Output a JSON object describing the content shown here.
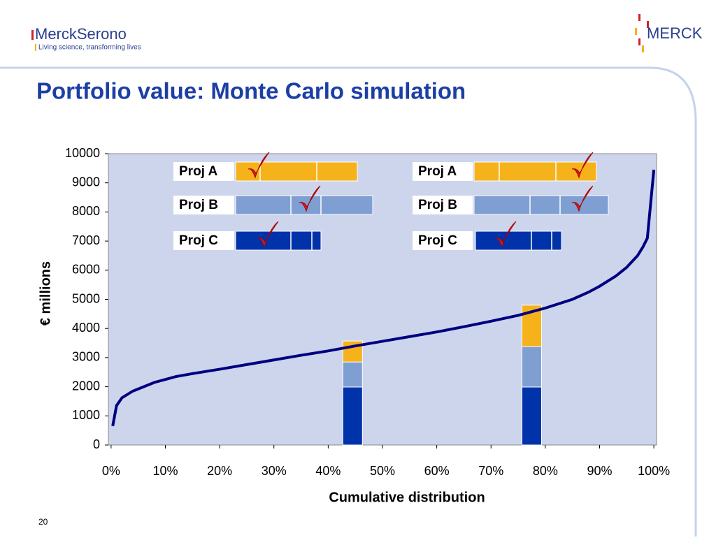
{
  "header": {
    "brand": "MerckSerono",
    "tagline": "Living science, transforming lives",
    "logo": "MERCK"
  },
  "footer": {
    "page": "20"
  },
  "chart_data": {
    "type": "line",
    "title": "Portfolio value: Monte Carlo simulation",
    "x_label": "Cumulative distribution",
    "y_label": "€ millions",
    "xlim": [
      -0.5,
      100.5
    ],
    "xticks": [
      {
        "value": 0,
        "label": "0%"
      },
      {
        "value": 10,
        "label": "10%"
      },
      {
        "value": 20,
        "label": "20%"
      },
      {
        "value": 30,
        "label": "30%"
      },
      {
        "value": 40,
        "label": "40%"
      },
      {
        "value": 50,
        "label": "50%"
      },
      {
        "value": 60,
        "label": "60%"
      },
      {
        "value": 70,
        "label": "70%"
      },
      {
        "value": 80,
        "label": "80%"
      },
      {
        "value": 90,
        "label": "90%"
      },
      {
        "value": 100,
        "label": "100%"
      }
    ],
    "ylim": [
      0,
      10000
    ],
    "yticks": [
      0,
      1000,
      2000,
      3000,
      4000,
      5000,
      6000,
      7000,
      8000,
      9000,
      10000
    ],
    "background": "#cdd5ec",
    "series": [
      {
        "type": "line",
        "color": "#000080",
        "x": [
          0.3,
          1,
          2,
          4,
          6,
          8,
          10,
          12,
          15,
          20,
          25,
          30,
          35,
          40,
          45,
          50,
          55,
          60,
          65,
          70,
          75,
          80,
          85,
          88,
          90,
          93,
          95,
          97,
          98,
          98.8,
          100
        ],
        "values": [
          650,
          1350,
          1620,
          1850,
          2000,
          2150,
          2250,
          2350,
          2450,
          2600,
          2760,
          2920,
          3080,
          3230,
          3400,
          3560,
          3720,
          3880,
          4060,
          4250,
          4450,
          4700,
          5000,
          5250,
          5450,
          5800,
          6100,
          6500,
          6800,
          7100,
          9450
        ]
      },
      {
        "type": "bar",
        "color": "#0033aa",
        "x": [
          44.5,
          77.5
        ],
        "values": [
          1990,
          1990
        ]
      },
      {
        "type": "bar",
        "color": "#7f9fd3",
        "x": [
          44.5,
          77.5
        ],
        "values": [
          860,
          1390
        ]
      },
      {
        "type": "bar",
        "color": "#f5b21a",
        "x": [
          44.5,
          77.5
        ],
        "values": [
          720,
          1420
        ]
      }
    ],
    "panels": [
      [
        "Proj A",
        "Proj B",
        "Proj C"
      ],
      [
        "Proj A",
        "Proj B",
        "Proj C"
      ]
    ]
  }
}
